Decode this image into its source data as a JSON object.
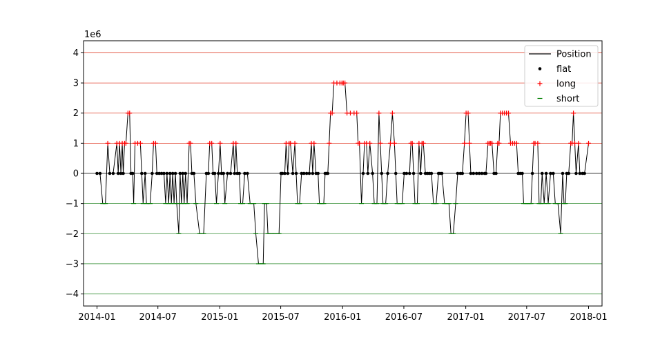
{
  "chart_data": {
    "type": "line",
    "title": "",
    "xlabel": "",
    "ylabel": "",
    "y_offset_label": "1e6",
    "y_scale": 1000000,
    "ylim": [
      -4.4,
      4.4
    ],
    "xlim": [
      "2013-11-22",
      "2018-02-10"
    ],
    "y_ticks": [
      -4,
      -3,
      -2,
      -1,
      0,
      1,
      2,
      3,
      4
    ],
    "y_tick_labels": [
      "−4",
      "−3",
      "−2",
      "−1",
      "0",
      "1",
      "2",
      "3",
      "4"
    ],
    "x_ticks": [
      "2014-01-01",
      "2014-07-01",
      "2015-01-01",
      "2015-07-01",
      "2016-01-01",
      "2016-07-01",
      "2017-01-01",
      "2017-07-01",
      "2018-01-01"
    ],
    "x_tick_labels": [
      "2014-01",
      "2014-07",
      "2015-01",
      "2015-07",
      "2016-01",
      "2016-07",
      "2017-01",
      "2017-07",
      "2018-01"
    ],
    "gridlines": {
      "levels": [
        4,
        3,
        2,
        1,
        0,
        -1,
        -2,
        -3,
        -4
      ],
      "colors": {
        "positive": "#e0422f",
        "zero": "#000000",
        "negative": "#2e8b2e"
      }
    },
    "legend": {
      "placement": "top-right",
      "entries": [
        {
          "label": "Position",
          "marker": "line",
          "color": "#000000"
        },
        {
          "label": "flat",
          "marker": "dot",
          "color": "#000000"
        },
        {
          "label": "long",
          "marker": "plus",
          "color": "#ff0000"
        },
        {
          "label": "short",
          "marker": "dash",
          "color": "#008000"
        }
      ]
    },
    "series": [
      {
        "name": "Position",
        "points": [
          [
            "2014-01-01",
            0
          ],
          [
            "2014-01-10",
            0
          ],
          [
            "2014-01-18",
            -1
          ],
          [
            "2014-01-26",
            -1
          ],
          [
            "2014-02-02",
            1
          ],
          [
            "2014-02-08",
            0
          ],
          [
            "2014-02-18",
            0
          ],
          [
            "2014-03-01",
            1
          ],
          [
            "2014-03-05",
            0
          ],
          [
            "2014-03-09",
            1
          ],
          [
            "2014-03-13",
            0
          ],
          [
            "2014-03-17",
            1
          ],
          [
            "2014-03-20",
            0
          ],
          [
            "2014-03-24",
            1
          ],
          [
            "2014-03-28",
            1
          ],
          [
            "2014-04-03",
            2
          ],
          [
            "2014-04-08",
            2
          ],
          [
            "2014-04-12",
            0
          ],
          [
            "2014-04-17",
            0
          ],
          [
            "2014-04-20",
            -1
          ],
          [
            "2014-04-24",
            1
          ],
          [
            "2014-05-02",
            1
          ],
          [
            "2014-05-10",
            1
          ],
          [
            "2014-05-14",
            0
          ],
          [
            "2014-05-18",
            -1
          ],
          [
            "2014-05-24",
            0
          ],
          [
            "2014-05-28",
            -1
          ],
          [
            "2014-06-08",
            -1
          ],
          [
            "2014-06-14",
            0
          ],
          [
            "2014-06-18",
            1
          ],
          [
            "2014-06-24",
            1
          ],
          [
            "2014-06-28",
            0
          ],
          [
            "2014-07-05",
            0
          ],
          [
            "2014-07-12",
            0
          ],
          [
            "2014-07-19",
            0
          ],
          [
            "2014-07-24",
            -1
          ],
          [
            "2014-07-28",
            0
          ],
          [
            "2014-08-02",
            -1
          ],
          [
            "2014-08-06",
            0
          ],
          [
            "2014-08-10",
            -1
          ],
          [
            "2014-08-14",
            0
          ],
          [
            "2014-08-18",
            -1
          ],
          [
            "2014-08-22",
            0
          ],
          [
            "2014-08-26",
            -1
          ],
          [
            "2014-09-01",
            -2
          ],
          [
            "2014-09-05",
            0
          ],
          [
            "2014-09-09",
            -1
          ],
          [
            "2014-09-13",
            0
          ],
          [
            "2014-09-17",
            -1
          ],
          [
            "2014-09-21",
            0
          ],
          [
            "2014-09-26",
            -1
          ],
          [
            "2014-10-02",
            1
          ],
          [
            "2014-10-06",
            1
          ],
          [
            "2014-10-10",
            0
          ],
          [
            "2014-10-16",
            0
          ],
          [
            "2014-10-22",
            -1
          ],
          [
            "2014-11-02",
            -2
          ],
          [
            "2014-11-14",
            -2
          ],
          [
            "2014-11-22",
            0
          ],
          [
            "2014-11-28",
            0
          ],
          [
            "2014-12-02",
            1
          ],
          [
            "2014-12-08",
            1
          ],
          [
            "2014-12-12",
            0
          ],
          [
            "2014-12-17",
            0
          ],
          [
            "2014-12-22",
            -1
          ],
          [
            "2014-12-28",
            0
          ],
          [
            "2015-01-02",
            1
          ],
          [
            "2015-01-06",
            0
          ],
          [
            "2015-01-12",
            0
          ],
          [
            "2015-01-16",
            -1
          ],
          [
            "2015-01-24",
            0
          ],
          [
            "2015-02-02",
            0
          ],
          [
            "2015-02-10",
            1
          ],
          [
            "2015-02-14",
            0
          ],
          [
            "2015-02-18",
            1
          ],
          [
            "2015-02-22",
            0
          ],
          [
            "2015-02-28",
            0
          ],
          [
            "2015-03-04",
            -1
          ],
          [
            "2015-03-10",
            -1
          ],
          [
            "2015-03-16",
            0
          ],
          [
            "2015-03-24",
            0
          ],
          [
            "2015-04-01",
            -1
          ],
          [
            "2015-04-12",
            -1
          ],
          [
            "2015-04-18",
            -2
          ],
          [
            "2015-04-26",
            -3
          ],
          [
            "2015-05-06",
            -3
          ],
          [
            "2015-05-10",
            -3
          ],
          [
            "2015-05-14",
            -1
          ],
          [
            "2015-05-20",
            -1
          ],
          [
            "2015-05-24",
            -2
          ],
          [
            "2015-06-03",
            -2
          ],
          [
            "2015-06-14",
            -2
          ],
          [
            "2015-06-26",
            -2
          ],
          [
            "2015-07-02",
            0
          ],
          [
            "2015-07-06",
            0
          ],
          [
            "2015-07-13",
            0
          ],
          [
            "2015-07-17",
            1
          ],
          [
            "2015-07-22",
            0
          ],
          [
            "2015-07-26",
            1
          ],
          [
            "2015-07-30",
            1
          ],
          [
            "2015-08-06",
            0
          ],
          [
            "2015-08-12",
            1
          ],
          [
            "2015-08-16",
            0
          ],
          [
            "2015-08-20",
            -1
          ],
          [
            "2015-08-26",
            -1
          ],
          [
            "2015-09-01",
            0
          ],
          [
            "2015-09-08",
            0
          ],
          [
            "2015-09-16",
            0
          ],
          [
            "2015-09-24",
            0
          ],
          [
            "2015-09-30",
            1
          ],
          [
            "2015-10-04",
            0
          ],
          [
            "2015-10-08",
            1
          ],
          [
            "2015-10-14",
            0
          ],
          [
            "2015-10-20",
            0
          ],
          [
            "2015-10-24",
            -1
          ],
          [
            "2015-11-01",
            -1
          ],
          [
            "2015-11-06",
            -1
          ],
          [
            "2015-11-10",
            0
          ],
          [
            "2015-11-14",
            0
          ],
          [
            "2015-11-18",
            0
          ],
          [
            "2015-11-22",
            1
          ],
          [
            "2015-11-26",
            2
          ],
          [
            "2015-12-01",
            2
          ],
          [
            "2015-12-06",
            3
          ],
          [
            "2015-12-15",
            3
          ],
          [
            "2015-12-24",
            3
          ],
          [
            "2015-12-30",
            3
          ],
          [
            "2016-01-03",
            3
          ],
          [
            "2016-01-08",
            3
          ],
          [
            "2016-01-14",
            2
          ],
          [
            "2016-01-24",
            2
          ],
          [
            "2016-02-04",
            2
          ],
          [
            "2016-02-12",
            2
          ],
          [
            "2016-02-16",
            1
          ],
          [
            "2016-02-20",
            1
          ],
          [
            "2016-02-26",
            -1
          ],
          [
            "2016-03-02",
            0
          ],
          [
            "2016-03-06",
            1
          ],
          [
            "2016-03-12",
            1
          ],
          [
            "2016-03-16",
            0
          ],
          [
            "2016-03-22",
            1
          ],
          [
            "2016-03-30",
            0
          ],
          [
            "2016-04-04",
            -1
          ],
          [
            "2016-04-12",
            -1
          ],
          [
            "2016-04-18",
            2
          ],
          [
            "2016-04-22",
            1
          ],
          [
            "2016-04-26",
            0
          ],
          [
            "2016-04-30",
            -1
          ],
          [
            "2016-05-04",
            -1
          ],
          [
            "2016-05-08",
            -1
          ],
          [
            "2016-05-14",
            0
          ],
          [
            "2016-05-22",
            1
          ],
          [
            "2016-05-28",
            2
          ],
          [
            "2016-06-03",
            1
          ],
          [
            "2016-06-07",
            0
          ],
          [
            "2016-06-11",
            -1
          ],
          [
            "2016-06-18",
            -1
          ],
          [
            "2016-06-26",
            -1
          ],
          [
            "2016-07-02",
            0
          ],
          [
            "2016-07-09",
            0
          ],
          [
            "2016-07-18",
            0
          ],
          [
            "2016-07-22",
            1
          ],
          [
            "2016-07-26",
            1
          ],
          [
            "2016-07-30",
            0
          ],
          [
            "2016-08-03",
            -1
          ],
          [
            "2016-08-10",
            -1
          ],
          [
            "2016-08-15",
            1
          ],
          [
            "2016-08-20",
            0
          ],
          [
            "2016-08-24",
            1
          ],
          [
            "2016-08-28",
            1
          ],
          [
            "2016-09-03",
            0
          ],
          [
            "2016-09-09",
            0
          ],
          [
            "2016-09-15",
            0
          ],
          [
            "2016-09-21",
            0
          ],
          [
            "2016-09-27",
            -1
          ],
          [
            "2016-10-05",
            -1
          ],
          [
            "2016-10-12",
            0
          ],
          [
            "2016-10-16",
            0
          ],
          [
            "2016-10-22",
            0
          ],
          [
            "2016-10-30",
            -1
          ],
          [
            "2016-11-06",
            -1
          ],
          [
            "2016-11-12",
            -1
          ],
          [
            "2016-11-18",
            -2
          ],
          [
            "2016-11-25",
            -2
          ],
          [
            "2016-12-02",
            -1
          ],
          [
            "2016-12-08",
            0
          ],
          [
            "2016-12-16",
            0
          ],
          [
            "2016-12-22",
            0
          ],
          [
            "2016-12-28",
            1
          ],
          [
            "2017-01-02",
            2
          ],
          [
            "2017-01-08",
            2
          ],
          [
            "2017-01-12",
            1
          ],
          [
            "2017-01-16",
            0
          ],
          [
            "2017-01-24",
            0
          ],
          [
            "2017-02-02",
            0
          ],
          [
            "2017-02-10",
            0
          ],
          [
            "2017-02-18",
            0
          ],
          [
            "2017-02-26",
            0
          ],
          [
            "2017-03-02",
            0
          ],
          [
            "2017-03-08",
            1
          ],
          [
            "2017-03-12",
            1
          ],
          [
            "2017-03-16",
            1
          ],
          [
            "2017-03-20",
            1
          ],
          [
            "2017-03-26",
            0
          ],
          [
            "2017-04-01",
            0
          ],
          [
            "2017-04-06",
            1
          ],
          [
            "2017-04-10",
            1
          ],
          [
            "2017-04-14",
            2
          ],
          [
            "2017-04-20",
            2
          ],
          [
            "2017-04-26",
            2
          ],
          [
            "2017-05-02",
            2
          ],
          [
            "2017-05-08",
            2
          ],
          [
            "2017-05-14",
            1
          ],
          [
            "2017-05-20",
            1
          ],
          [
            "2017-05-26",
            1
          ],
          [
            "2017-06-01",
            1
          ],
          [
            "2017-06-06",
            0
          ],
          [
            "2017-06-12",
            0
          ],
          [
            "2017-06-18",
            0
          ],
          [
            "2017-06-22",
            -1
          ],
          [
            "2017-06-28",
            -1
          ],
          [
            "2017-07-04",
            -1
          ],
          [
            "2017-07-08",
            -1
          ],
          [
            "2017-07-14",
            -1
          ],
          [
            "2017-07-18",
            0
          ],
          [
            "2017-07-22",
            1
          ],
          [
            "2017-07-26",
            1
          ],
          [
            "2017-08-03",
            1
          ],
          [
            "2017-08-07",
            -1
          ],
          [
            "2017-08-12",
            -1
          ],
          [
            "2017-08-16",
            0
          ],
          [
            "2017-08-22",
            -1
          ],
          [
            "2017-08-28",
            0
          ],
          [
            "2017-09-03",
            -1
          ],
          [
            "2017-09-10",
            0
          ],
          [
            "2017-09-18",
            0
          ],
          [
            "2017-09-24",
            -1
          ],
          [
            "2017-10-02",
            -1
          ],
          [
            "2017-10-10",
            -2
          ],
          [
            "2017-10-16",
            0
          ],
          [
            "2017-10-20",
            -1
          ],
          [
            "2017-10-24",
            -1
          ],
          [
            "2017-10-28",
            0
          ],
          [
            "2017-11-03",
            0
          ],
          [
            "2017-11-09",
            1
          ],
          [
            "2017-11-13",
            1
          ],
          [
            "2017-11-17",
            2
          ],
          [
            "2017-11-21",
            1
          ],
          [
            "2017-11-25",
            0
          ],
          [
            "2017-12-02",
            1
          ],
          [
            "2017-12-06",
            0
          ],
          [
            "2017-12-14",
            0
          ],
          [
            "2017-12-20",
            0
          ],
          [
            "2018-01-01",
            1
          ]
        ]
      }
    ]
  }
}
